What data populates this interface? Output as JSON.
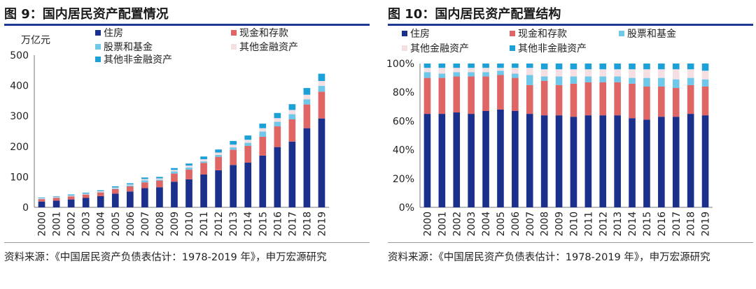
{
  "left": {
    "title": "图 9：国内居民资产配置情况",
    "source": "资料来源：《中国居民资产负债表估计：1978-2019 年》，申万宏源研究",
    "chart_data": {
      "type": "bar",
      "stacked": true,
      "title": "国内居民资产配置情况",
      "ylabel": "万亿元",
      "ylim": [
        0,
        500
      ],
      "yticks": [
        "0",
        "100",
        "200",
        "300",
        "400",
        "500"
      ],
      "legend": "top-left",
      "categories": [
        "2000",
        "2001",
        "2002",
        "2003",
        "2004",
        "2005",
        "2006",
        "2007",
        "2008",
        "2009",
        "2010",
        "2011",
        "2012",
        "2013",
        "2014",
        "2015",
        "2016",
        "2017",
        "2018",
        "2019"
      ],
      "series": [
        {
          "name": "住房",
          "color": "#1b2f8c",
          "values": [
            19,
            22,
            26,
            31,
            37,
            45,
            52,
            63,
            66,
            84,
            92,
            108,
            122,
            139,
            147,
            170,
            198,
            216,
            260,
            292
          ]
        },
        {
          "name": "现金和存款",
          "color": "#e06666",
          "values": [
            8,
            9,
            10,
            11,
            12,
            15,
            17,
            19,
            22,
            27,
            32,
            38,
            44,
            50,
            55,
            62,
            68,
            73,
            78,
            88
          ]
        },
        {
          "name": "股票和基金",
          "color": "#6fc7ea",
          "values": [
            1,
            1,
            1,
            1,
            1,
            2,
            3,
            7,
            3,
            7,
            7,
            5,
            6,
            8,
            10,
            17,
            15,
            17,
            17,
            19
          ]
        },
        {
          "name": "其他金融资产",
          "color": "#f6dfe3",
          "values": [
            2,
            2,
            2,
            2,
            3,
            3,
            3,
            4,
            4,
            5,
            6,
            7,
            8,
            9,
            10,
            11,
            12,
            14,
            15,
            16
          ]
        },
        {
          "name": "其他非金融资产",
          "color": "#1ba1d8",
          "values": [
            2,
            2,
            3,
            3,
            3,
            4,
            4,
            5,
            5,
            6,
            7,
            9,
            10,
            12,
            14,
            15,
            17,
            19,
            22,
            24
          ]
        }
      ]
    }
  },
  "right": {
    "title": "图 10：国内居民资产配置结构",
    "source": "资料来源：《中国居民资产负债表估计：1978-2019 年》，申万宏源研究",
    "chart_data": {
      "type": "bar",
      "stacked": true,
      "percent": true,
      "title": "国内居民资产配置结构",
      "ylim": [
        0,
        100
      ],
      "yticks": [
        "0%",
        "20%",
        "40%",
        "60%",
        "80%",
        "100%"
      ],
      "legend": "top",
      "categories": [
        "2000",
        "2001",
        "2002",
        "2003",
        "2004",
        "2005",
        "2006",
        "2007",
        "2008",
        "2009",
        "2010",
        "2011",
        "2012",
        "2013",
        "2014",
        "2015",
        "2016",
        "2017",
        "2018",
        "2019"
      ],
      "series": [
        {
          "name": "住房",
          "color": "#1b2f8c",
          "values": [
            65,
            65,
            66,
            65,
            67,
            68,
            67,
            65,
            64,
            64,
            63,
            64,
            64,
            64,
            62,
            61,
            63,
            63,
            65,
            64
          ]
        },
        {
          "name": "现金和存款",
          "color": "#e06666",
          "values": [
            25,
            25,
            25,
            26,
            24,
            24,
            23,
            20,
            24,
            21,
            23,
            23,
            23,
            23,
            24,
            23,
            21,
            20,
            20,
            20
          ]
        },
        {
          "name": "股票和基金",
          "color": "#6fc7ea",
          "values": [
            4,
            3,
            3,
            3,
            3,
            3,
            3,
            7,
            3,
            6,
            5,
            4,
            4,
            4,
            4,
            6,
            6,
            6,
            5,
            5
          ]
        },
        {
          "name": "其他金融资产",
          "color": "#f6dfe3",
          "values": [
            3,
            4,
            3,
            3,
            3,
            2,
            4,
            5,
            5,
            5,
            5,
            5,
            5,
            5,
            6,
            6,
            6,
            7,
            6,
            6
          ]
        },
        {
          "name": "其他非金融资产",
          "color": "#1ba1d8",
          "values": [
            3,
            3,
            3,
            3,
            3,
            3,
            3,
            3,
            4,
            4,
            4,
            4,
            4,
            4,
            4,
            4,
            4,
            4,
            4,
            5
          ]
        }
      ]
    }
  }
}
